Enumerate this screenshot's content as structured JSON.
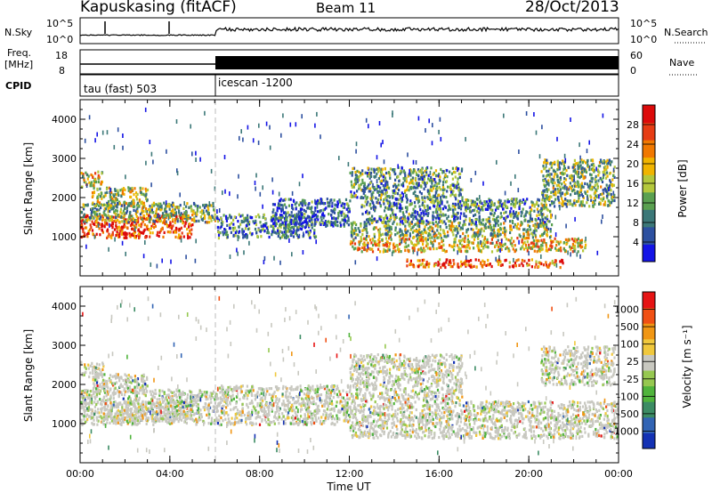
{
  "header": {
    "station": "Kapuskasing (fitACF)",
    "beam": "Beam 11",
    "date": "28/Oct/2013"
  },
  "strips": {
    "nsky_label": "N.Sky",
    "nsky_ticks": [
      "10^5",
      "10^0"
    ],
    "nsearch_label": "N.Search",
    "nsearch_ticks": [
      "10^5",
      "10^0"
    ],
    "freq_label": [
      "Freq.",
      "[MHz]"
    ],
    "freq_ticks": [
      "18",
      "8"
    ],
    "nave_label": "Nave",
    "nave_ticks": [
      "60",
      "0"
    ],
    "cpid_label": "CPID",
    "cpid_modes": [
      "tau (fast) 503",
      "icescan -1200"
    ]
  },
  "chart_data": [
    {
      "type": "heatmap",
      "panel": "power",
      "ylabel": "Slant Range [km]",
      "xlabel": "",
      "yticks": [
        "4000",
        "3000",
        "2000",
        "1000"
      ],
      "ylim": [
        0,
        4500
      ],
      "xlim": [
        0,
        24
      ],
      "colorbar": {
        "label": "Power [dB]",
        "ticks": [
          "28",
          "24",
          "20",
          "16",
          "12",
          "8",
          "4"
        ],
        "colors": [
          "#1414e6",
          "#2d50a0",
          "#3c7878",
          "#5aa050",
          "#b4c83c",
          "#f0b400",
          "#f07800",
          "#e63c14",
          "#dc0a0a"
        ]
      },
      "blobs": [
        {
          "t0": 0.0,
          "t1": 1.0,
          "r0": 2300,
          "r1": 2700,
          "level": 0.55
        },
        {
          "t0": 0.5,
          "t1": 3.0,
          "r0": 1800,
          "r1": 2300,
          "level": 0.5
        },
        {
          "t0": 0.0,
          "t1": 5.0,
          "r0": 1000,
          "r1": 1600,
          "level": 0.85
        },
        {
          "t0": 0.0,
          "t1": 6.0,
          "r0": 1400,
          "r1": 1900,
          "level": 0.4
        },
        {
          "t0": 6.0,
          "t1": 10.5,
          "r0": 1000,
          "r1": 1600,
          "level": 0.25
        },
        {
          "t0": 8.5,
          "t1": 12.0,
          "r0": 1300,
          "r1": 2000,
          "level": 0.2
        },
        {
          "t0": 12.0,
          "t1": 21.0,
          "r0": 1000,
          "r1": 1400,
          "level": 0.45
        },
        {
          "t0": 12.0,
          "t1": 22.5,
          "r0": 650,
          "r1": 1000,
          "level": 0.6
        },
        {
          "t0": 12.5,
          "t1": 21.0,
          "r0": 1400,
          "r1": 2000,
          "level": 0.3
        },
        {
          "t0": 12.0,
          "t1": 17.0,
          "r0": 2000,
          "r1": 2800,
          "level": 0.35
        },
        {
          "t0": 14.5,
          "t1": 21.5,
          "r0": 250,
          "r1": 450,
          "level": 0.8
        },
        {
          "t0": 20.5,
          "t1": 23.8,
          "r0": 1800,
          "r1": 3000,
          "level": 0.4
        }
      ]
    },
    {
      "type": "heatmap",
      "panel": "velocity",
      "ylabel": "Slant Range [km]",
      "xlabel": "Time UT",
      "xticks": [
        "00:00",
        "04:00",
        "08:00",
        "12:00",
        "16:00",
        "20:00",
        "00:00"
      ],
      "yticks": [
        "4000",
        "3000",
        "2000",
        "1000"
      ],
      "ylim": [
        0,
        4500
      ],
      "xlim": [
        0,
        24
      ],
      "colorbar": {
        "label": "Velocity [m s⁻¹]",
        "ticks": [
          "1000",
          "500",
          "100",
          "25",
          "-25",
          "-100",
          "-500",
          "-1000"
        ],
        "colors": [
          "#1432b4",
          "#3264b4",
          "#3c8c64",
          "#50b43c",
          "#96c850",
          "#c8c8c0",
          "#f0c83c",
          "#f09614",
          "#f05014",
          "#e61414"
        ]
      },
      "blobs": [
        {
          "t0": 0.0,
          "t1": 1.0,
          "r0": 2200,
          "r1": 2600,
          "level": 0.5
        },
        {
          "t0": 0.5,
          "t1": 3.0,
          "r0": 1800,
          "r1": 2300,
          "level": 0.5
        },
        {
          "t0": 0.0,
          "t1": 6.0,
          "r0": 1000,
          "r1": 1900,
          "level": 0.5
        },
        {
          "t0": 1.0,
          "t1": 5.0,
          "r0": 1100,
          "r1": 1600,
          "level": 0.55
        },
        {
          "t0": 6.0,
          "t1": 12.0,
          "r0": 1000,
          "r1": 2000,
          "level": 0.5
        },
        {
          "t0": 12.0,
          "t1": 24.0,
          "r0": 650,
          "r1": 1600,
          "level": 0.5
        },
        {
          "t0": 12.0,
          "t1": 17.0,
          "r0": 1600,
          "r1": 2800,
          "level": 0.5
        },
        {
          "t0": 20.5,
          "t1": 23.8,
          "r0": 2000,
          "r1": 3000,
          "level": 0.45
        }
      ]
    }
  ]
}
